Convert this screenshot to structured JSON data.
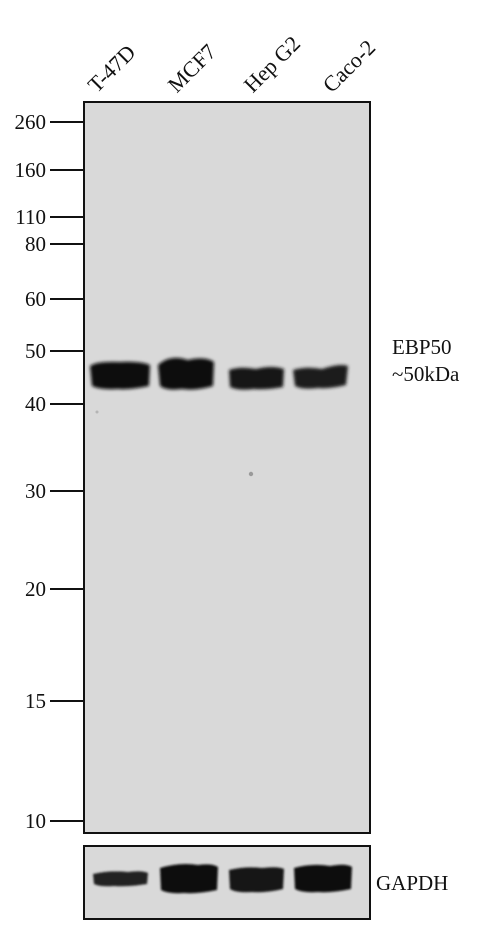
{
  "lanes": [
    "T-47D",
    "MCF7",
    "Hep G2",
    "Caco-2"
  ],
  "markers": [
    "260",
    "160",
    "110",
    "80",
    "60",
    "50",
    "40",
    "30",
    "20",
    "15",
    "10"
  ],
  "main_band": {
    "name": "EBP50",
    "size": "~50kDa"
  },
  "loading_control": {
    "name": "GAPDH"
  },
  "colors": {
    "membrane": "#d9d9d9",
    "band": "#111111",
    "border": "#111111"
  }
}
